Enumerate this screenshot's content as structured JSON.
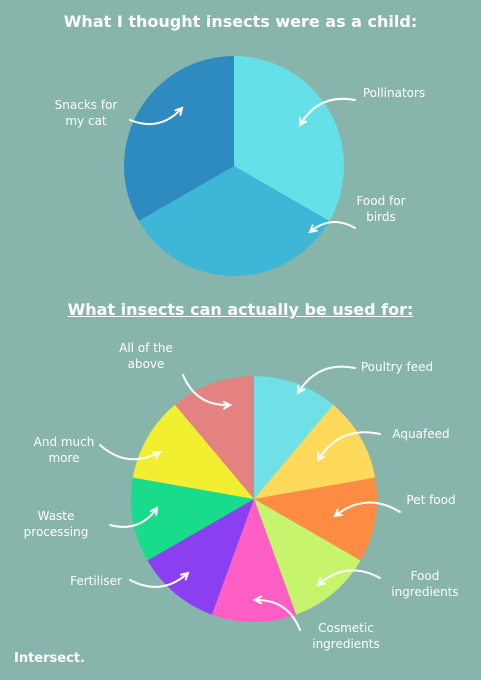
{
  "chart_data": [
    {
      "type": "pie",
      "title": "What I thought insects were as a child:",
      "categories": [
        "Pollinators",
        "Food for\nbirds",
        "Snacks for\nmy cat"
      ],
      "values": [
        33.3,
        33.3,
        33.3
      ],
      "colors": [
        "#66e0e8",
        "#3db6d8",
        "#2e8bc0"
      ]
    },
    {
      "type": "pie",
      "title": "What insects can actually be used for:",
      "categories": [
        "Poultry feed",
        "Aquafeed",
        "Pet food",
        "Food\ningredients",
        "Cosmetic\ningredients",
        "Fertiliser",
        "Waste\nprocessing",
        "And much\nmore",
        "All of the\nabove"
      ],
      "values": [
        11.1,
        11.1,
        11.1,
        11.1,
        11.1,
        11.1,
        11.1,
        11.1,
        11.1
      ],
      "colors": [
        "#6ee0e6",
        "#ffd95a",
        "#ff8c42",
        "#c6f56d",
        "#ff5fc4",
        "#8a3ff0",
        "#18dc8c",
        "#f1ef2f",
        "#e48282"
      ]
    }
  ],
  "footer": {
    "logo": "Intersect."
  }
}
